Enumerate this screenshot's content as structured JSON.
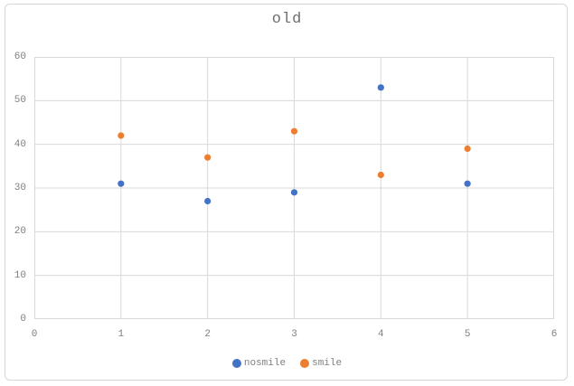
{
  "chart_data": {
    "type": "scatter",
    "title": "old",
    "xlabel": "",
    "ylabel": "",
    "xlim": [
      0,
      6
    ],
    "xtick_step": 1,
    "ylim": [
      0,
      60
    ],
    "ytick_step": 10,
    "grid": true,
    "legend_position": "bottom",
    "series": [
      {
        "name": "nosmile",
        "color": "#4472c4",
        "points": [
          [
            1,
            31
          ],
          [
            2,
            27
          ],
          [
            3,
            29
          ],
          [
            4,
            53
          ],
          [
            5,
            31
          ]
        ]
      },
      {
        "name": "smile",
        "color": "#ed7d31",
        "points": [
          [
            1,
            42
          ],
          [
            2,
            37
          ],
          [
            3,
            43
          ],
          [
            4,
            33
          ],
          [
            5,
            39
          ]
        ]
      }
    ]
  },
  "style": {
    "gridline_color": "#d9d9d9",
    "tick_color": "#7f7f7f",
    "title_color": "#6e6e6e",
    "background": "#ffffff"
  }
}
